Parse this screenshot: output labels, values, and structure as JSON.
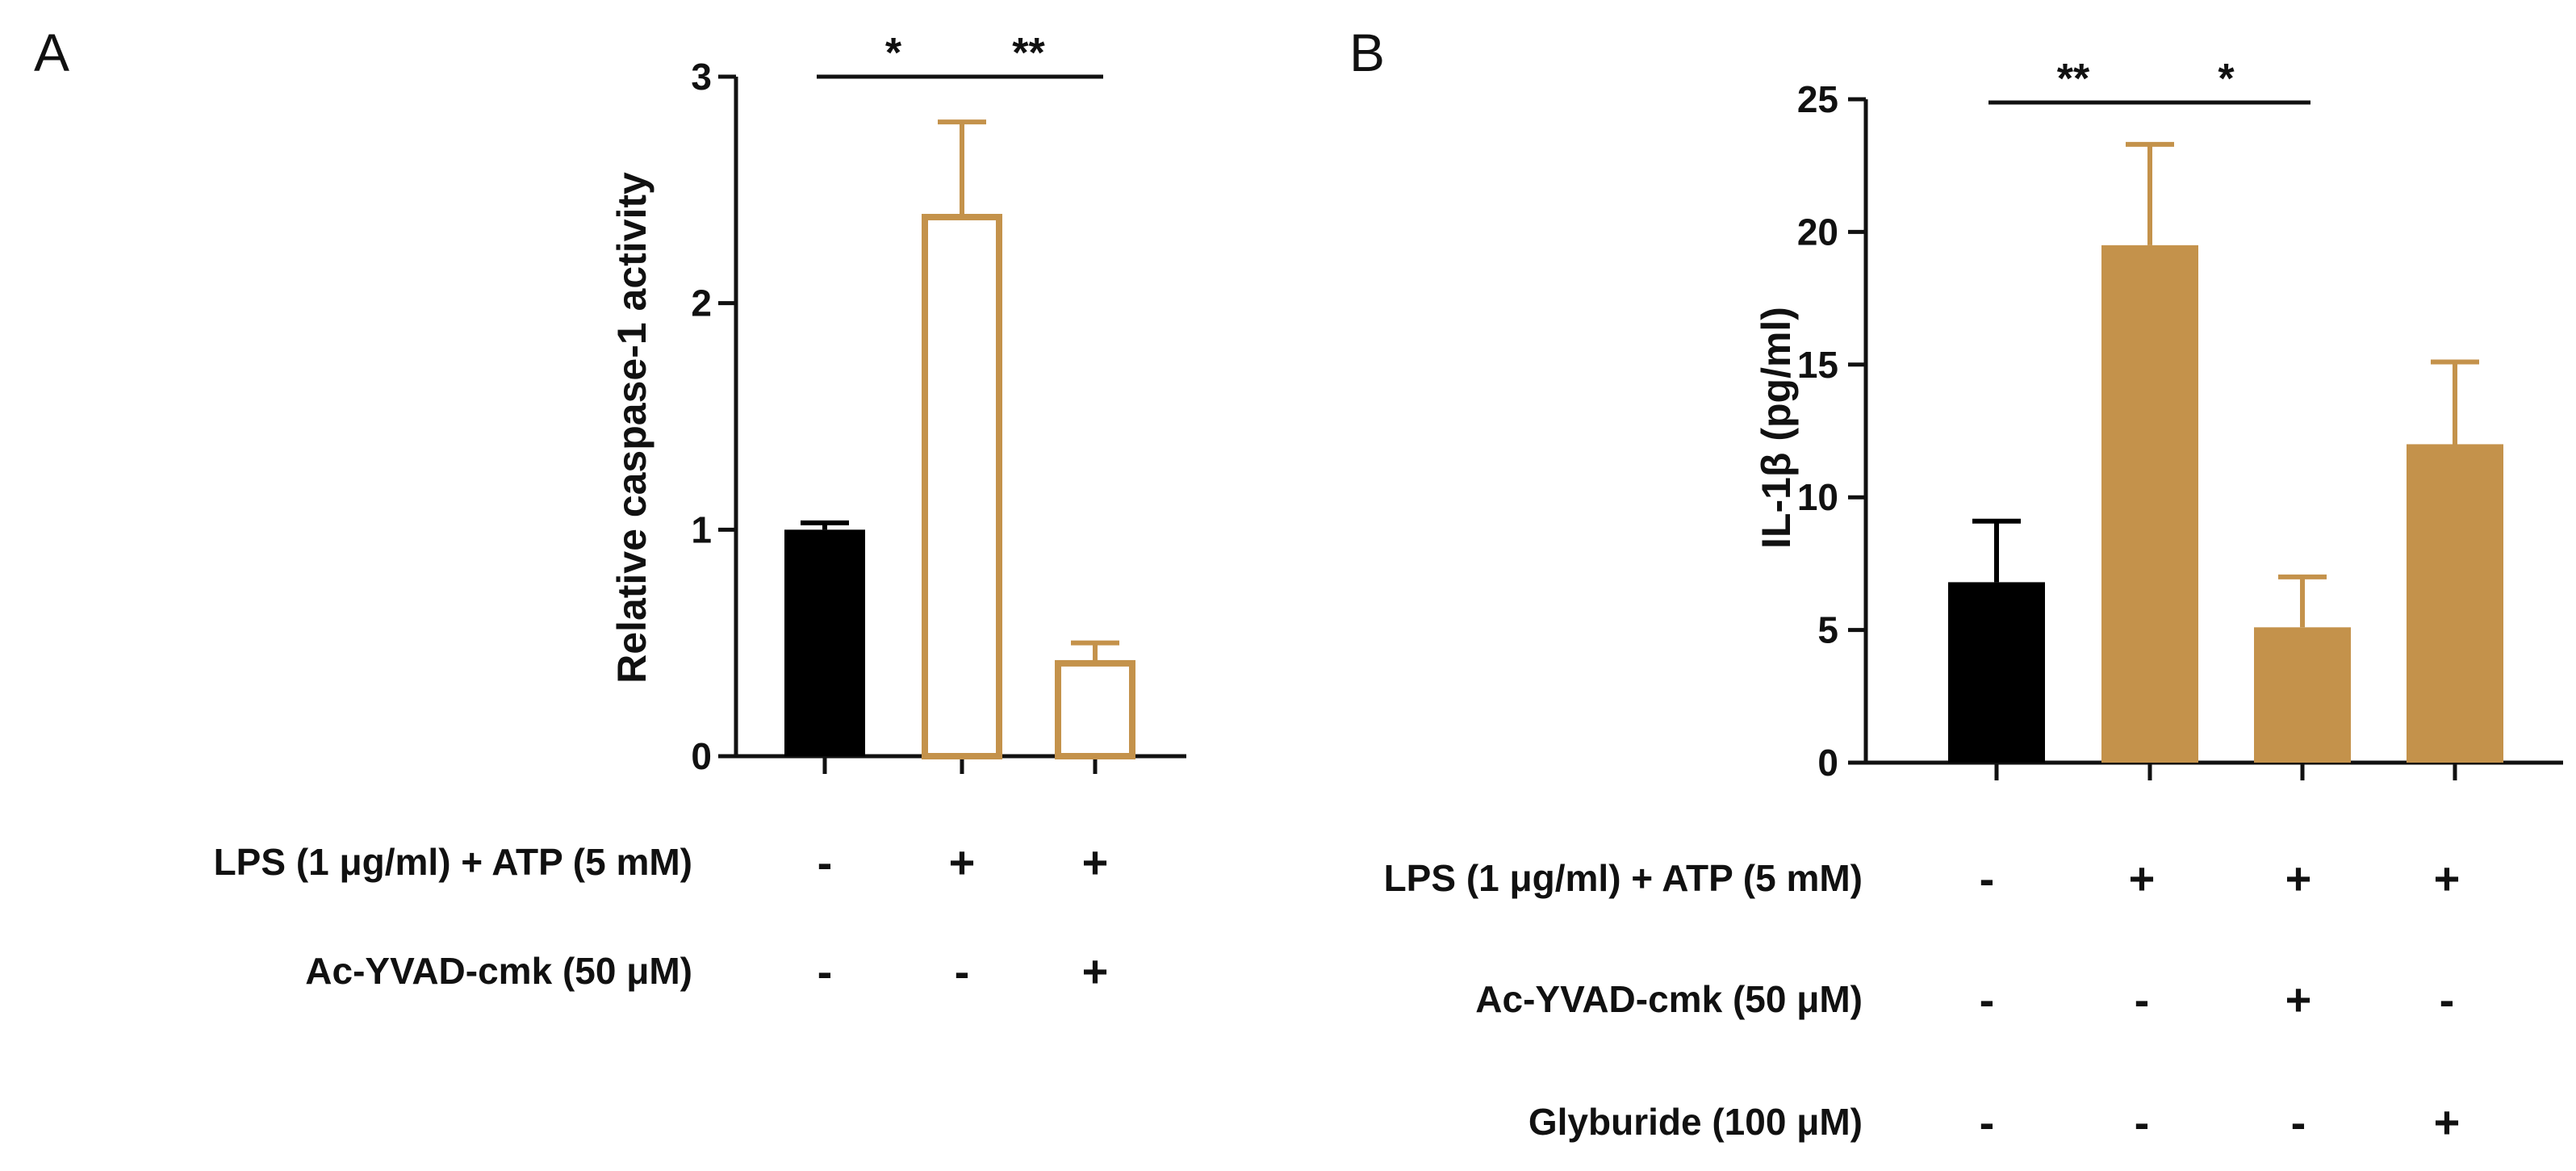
{
  "colors": {
    "control": "#000000",
    "gold": "#C4924B",
    "gold_outline": "#C4924B",
    "axis": "#111111"
  },
  "chart_data": [
    {
      "panel": "A",
      "type": "bar",
      "ylabel": "Relative caspase-1 activity",
      "ylim": [
        0,
        3
      ],
      "yticks": [
        "0",
        "1",
        "2",
        "3"
      ],
      "values": [
        1.0,
        2.38,
        0.41
      ],
      "errors": [
        0.03,
        0.42,
        0.09
      ],
      "fill_styles": [
        "solid-black",
        "open-gold",
        "open-gold"
      ],
      "significance": [
        {
          "from": 0,
          "to": 1,
          "label": "*"
        },
        {
          "from": 1,
          "to": 2,
          "label": "**"
        }
      ],
      "rows": [
        {
          "label": "LPS (1 μg/ml) + ATP (5 mM)",
          "signs": [
            "-",
            "+",
            "+"
          ]
        },
        {
          "label": "Ac-YVAD-cmk (50 μM)",
          "signs": [
            "-",
            "-",
            "+"
          ]
        }
      ]
    },
    {
      "panel": "B",
      "type": "bar",
      "ylabel": "IL-1β (pg/ml)",
      "ylim": [
        0,
        25
      ],
      "yticks": [
        "0",
        "5",
        "10",
        "15",
        "20",
        "25"
      ],
      "values": [
        6.8,
        19.5,
        5.1,
        12.0
      ],
      "errors": [
        2.3,
        3.8,
        1.9,
        3.1
      ],
      "fill_styles": [
        "solid-black",
        "solid-gold",
        "solid-gold",
        "solid-gold"
      ],
      "significance": [
        {
          "from": 0,
          "to": 1,
          "label": "**"
        },
        {
          "from": 1,
          "to": 2,
          "label": "*"
        }
      ],
      "rows": [
        {
          "label": "LPS (1 μg/ml) + ATP (5 mM)",
          "signs": [
            "-",
            "+",
            "+",
            "+"
          ]
        },
        {
          "label": "Ac-YVAD-cmk (50 μM)",
          "signs": [
            "-",
            "-",
            "+",
            "-"
          ]
        },
        {
          "label": "Glyburide (100 μM)",
          "signs": [
            "-",
            "-",
            "-",
            "+"
          ]
        }
      ]
    }
  ]
}
